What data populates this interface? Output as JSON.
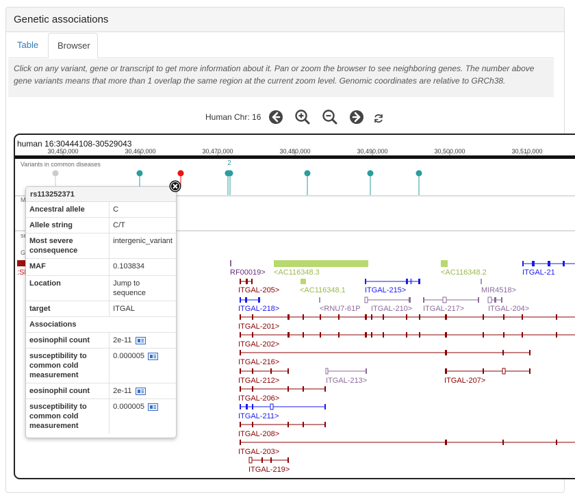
{
  "panel": {
    "title": "Genetic associations"
  },
  "tabs": [
    {
      "label": "Table"
    },
    {
      "label": "Browser"
    }
  ],
  "info_text": "Click on any variant, gene or transcript to get more information about it. Pan or zoom the browser to see neighboring genes. The number above gene variants means that more than 1 overlap the same region at the current zoom level. Genomic coordinates are relative to GRCh38.",
  "nav": {
    "label": "Human Chr: 16",
    "icons": [
      "arrow-left-icon",
      "zoom-in-icon",
      "zoom-out-icon",
      "arrow-right-icon",
      "refresh-icon"
    ]
  },
  "browser": {
    "location": "human 16:30444108-30529043",
    "ticks": [
      "30,450,000",
      "30,460,000",
      "30,470,000",
      "30,480,000",
      "30,490,000",
      "30,500,000",
      "30,510,000"
    ],
    "variant_track_label": "Variants in common diseases",
    "cluster_count": "2",
    "partial_labels": {
      "track_a": "M",
      "track_b": "se",
      "track_c": "Ge",
      "gene_left": ":SE"
    },
    "colors": {
      "teal": "#2a9d9d",
      "red_variant": "#ee1111",
      "gray_variant": "#cccccc",
      "dark_red": "#8b0000",
      "blue": "#1a1aee",
      "purple": "#8a6a9a",
      "lime": "#b8d870",
      "maroon_label": "#8b1a3a"
    },
    "genes": [
      {
        "label": "RF00019>"
      },
      {
        "label": "<AC116348.3"
      },
      {
        "label": "<AC116348.2"
      },
      {
        "label": "ITGAL-21"
      },
      {
        "label": "ITGAL-205>"
      },
      {
        "label": "<AC116348.1"
      },
      {
        "label": "ITGAL-215>"
      },
      {
        "label": "MIR4518>"
      },
      {
        "label": "ITGAL-218>"
      },
      {
        "label": "<RNU7-61P"
      },
      {
        "label": "ITGAL-210>"
      },
      {
        "label": "ITGAL-217>"
      },
      {
        "label": "ITGAL-204>"
      },
      {
        "label": "ITGAL-201>"
      },
      {
        "label": "ITGAL-202>"
      },
      {
        "label": "ITGAL-216>"
      },
      {
        "label": "ITGAL-212>"
      },
      {
        "label": "ITGAL-213>"
      },
      {
        "label": "ITGAL-207>"
      },
      {
        "label": "ITGAL-206>"
      },
      {
        "label": "ITGAL-211>"
      },
      {
        "label": "ITGAL-208>"
      },
      {
        "label": "ITGAL-203>"
      },
      {
        "label": "ITGAL-219>"
      }
    ]
  },
  "popup": {
    "title": "rs113252371",
    "rows": [
      {
        "key": "Ancestral allele",
        "value": "C"
      },
      {
        "key": "Allele string",
        "value": "C/T"
      },
      {
        "key": "Most severe consequence",
        "value": "intergenic_variant"
      },
      {
        "key": "MAF",
        "value": "0.103834"
      },
      {
        "key": "Location",
        "value": "Jump to sequence"
      },
      {
        "key": "target",
        "value": "ITGAL"
      }
    ],
    "associations_label": "Associations",
    "associations": [
      {
        "trait": "eosinophil count",
        "value": "2e-11"
      },
      {
        "trait": "susceptibility to common cold measurement",
        "value": "0.000005"
      },
      {
        "trait": "eosinophil count",
        "value": "2e-11"
      },
      {
        "trait": "susceptibility to common cold measurement",
        "value": "0.000005"
      }
    ]
  }
}
